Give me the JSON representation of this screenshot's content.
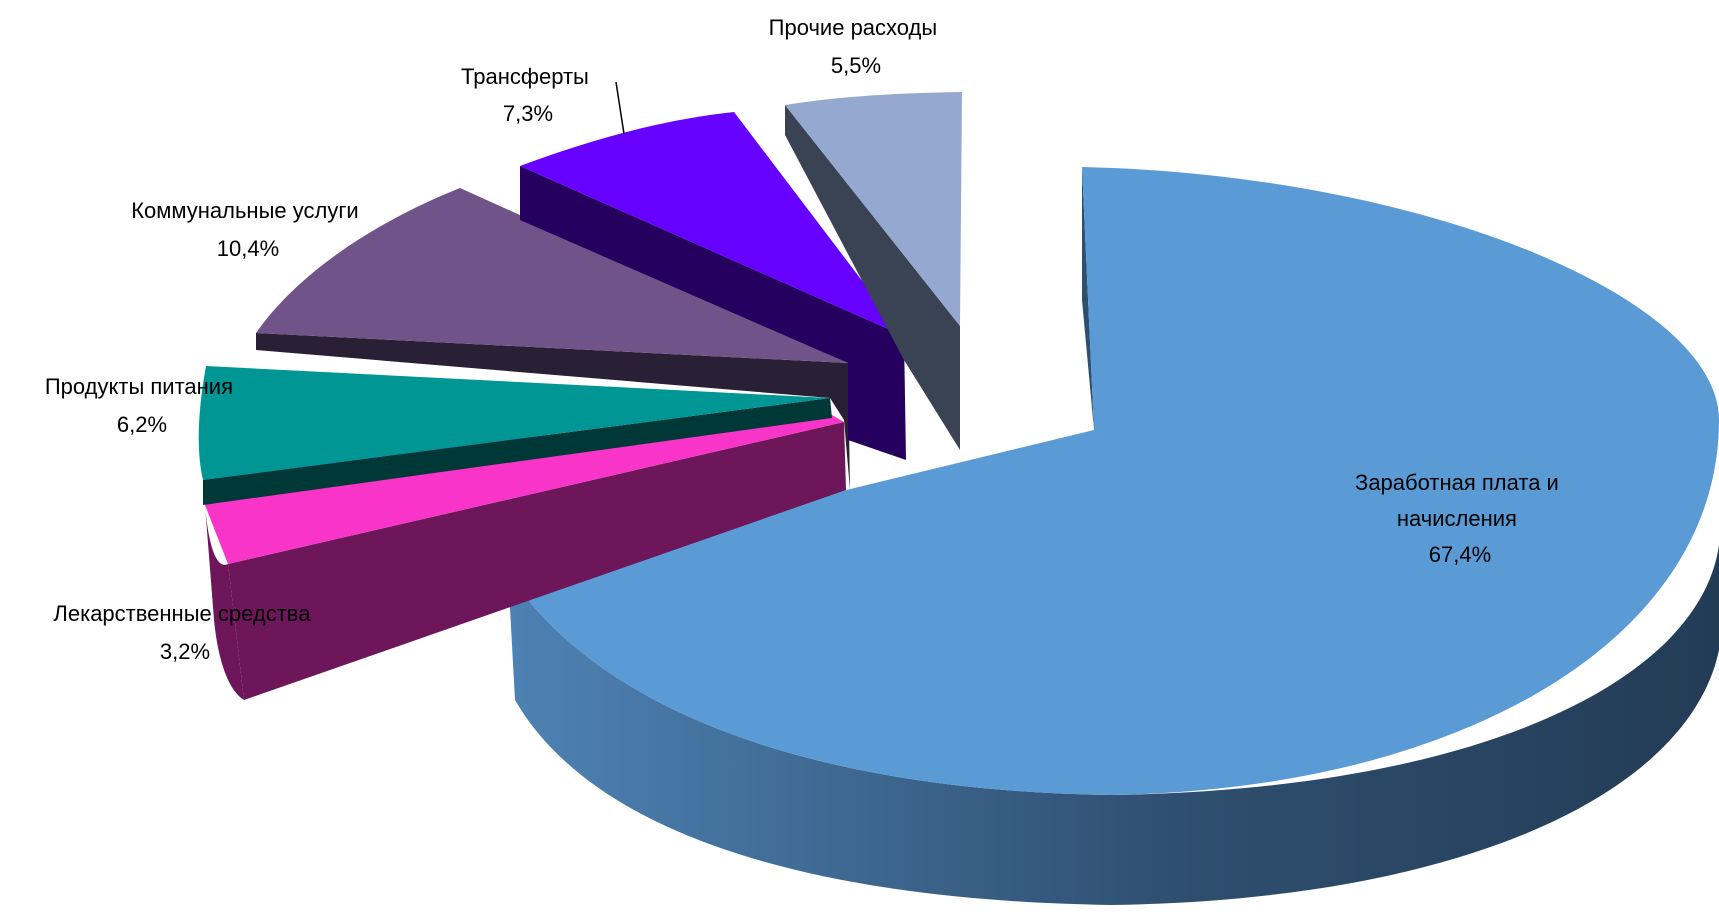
{
  "chart_data": {
    "type": "pie",
    "title": "",
    "three_d": true,
    "exploded": true,
    "slices": [
      {
        "label_lines": [
          "Заработная плата и",
          "начисления"
        ],
        "value_text": "67,4%",
        "value": 67.4,
        "color": "#5B9BD5",
        "side_color": "#2E4E6E"
      },
      {
        "label_lines": [
          "Лекарственные средства"
        ],
        "value_text": "3,2%",
        "value": 3.2,
        "color": "#F935C9",
        "side_color": "#6D1659"
      },
      {
        "label_lines": [
          "Продукты питания"
        ],
        "value_text": "6,2%",
        "value": 6.2,
        "color": "#009693",
        "side_color": "#003838"
      },
      {
        "label_lines": [
          "Коммунальные услуги"
        ],
        "value_text": "10,4%",
        "value": 10.4,
        "color": "#705489",
        "side_color": "#2A2035"
      },
      {
        "label_lines": [
          "Трансферты"
        ],
        "value_text": "7,3%",
        "value": 7.3,
        "color": "#6600FF",
        "side_color": "#26005F"
      },
      {
        "label_lines": [
          "Прочие расходы"
        ],
        "value_text": "5,5%",
        "value": 5.5,
        "color": "#95A9D0",
        "side_color": "#3A4353"
      }
    ]
  }
}
